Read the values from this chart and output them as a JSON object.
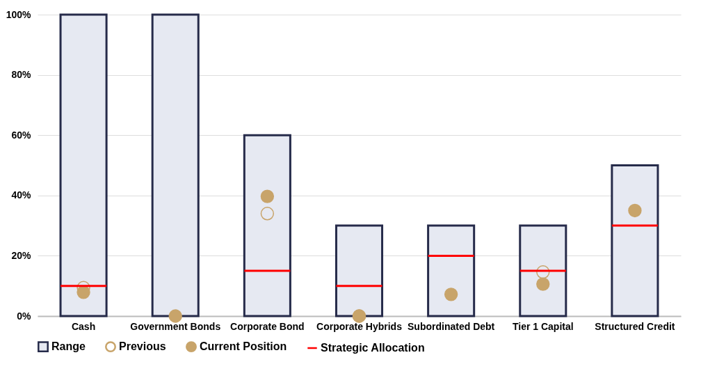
{
  "chart_data": {
    "type": "bar",
    "categories": [
      "Cash",
      "Government Bonds",
      "Corporate Bond",
      "Corporate Hybrids",
      "Subordinated Debt",
      "Tier 1 Capital",
      "Structured Credit"
    ],
    "series": [
      {
        "name": "Range",
        "color": "#e6e9f2",
        "values": [
          100,
          100,
          60,
          30,
          30,
          30,
          50
        ]
      },
      {
        "name": "Previous",
        "type": "scatter",
        "marker": "circle",
        "color": "#c8a46a",
        "values": [
          9.4,
          null,
          34,
          0,
          null,
          14.6,
          null
        ]
      },
      {
        "name": "Current Position",
        "type": "scatter",
        "marker": "circle",
        "color": "#c8a46a",
        "values": [
          7.9,
          0,
          39.7,
          0,
          7.2,
          10.6,
          35
        ]
      },
      {
        "name": "Strategic Allocation",
        "type": "bar",
        "color": "#ff0000",
        "base": [
          10,
          null,
          15,
          10,
          20,
          15,
          30
        ],
        "values": [
          0,
          null,
          0,
          0,
          0,
          0,
          0
        ]
      }
    ],
    "ylim": [
      0,
      100
    ],
    "yticks": [
      {
        "value": 0,
        "label": "0%"
      },
      {
        "value": 20,
        "label": "20%"
      },
      {
        "value": 40,
        "label": "40%"
      },
      {
        "value": 60,
        "label": "60%"
      },
      {
        "value": 80,
        "label": "80%"
      },
      {
        "value": 100,
        "label": "100%"
      }
    ],
    "grid": "y",
    "legend": "bottom"
  }
}
